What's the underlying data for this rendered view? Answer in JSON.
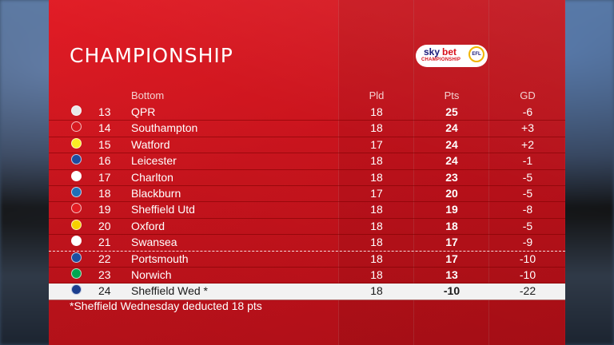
{
  "title": "CHAMPIONSHIP",
  "sponsor": {
    "sky": "sky",
    "bet": "bet",
    "sub": "CHAMPIONSHIP",
    "league": "EFL"
  },
  "headers": {
    "section": "Bottom",
    "pld": "Pld",
    "pts": "Pts",
    "gd": "GD"
  },
  "rows": [
    {
      "pos": "13",
      "team": "QPR",
      "pld": "18",
      "pts": "25",
      "gd": "-6",
      "badge_color": "#e8e8e8"
    },
    {
      "pos": "14",
      "team": "Southampton",
      "pld": "18",
      "pts": "24",
      "gd": "+3",
      "badge_color": "#d71920"
    },
    {
      "pos": "15",
      "team": "Watford",
      "pld": "17",
      "pts": "24",
      "gd": "+2",
      "badge_color": "#fbee23"
    },
    {
      "pos": "16",
      "team": "Leicester",
      "pld": "18",
      "pts": "24",
      "gd": "-1",
      "badge_color": "#1d4ba0"
    },
    {
      "pos": "17",
      "team": "Charlton",
      "pld": "18",
      "pts": "23",
      "gd": "-5",
      "badge_color": "#ffffff"
    },
    {
      "pos": "18",
      "team": "Blackburn",
      "pld": "17",
      "pts": "20",
      "gd": "-5",
      "badge_color": "#1e6fb8"
    },
    {
      "pos": "19",
      "team": "Sheffield Utd",
      "pld": "18",
      "pts": "19",
      "gd": "-8",
      "badge_color": "#e21b22"
    },
    {
      "pos": "20",
      "team": "Oxford",
      "pld": "18",
      "pts": "18",
      "gd": "-5",
      "badge_color": "#f6d000"
    },
    {
      "pos": "21",
      "team": "Swansea",
      "pld": "18",
      "pts": "17",
      "gd": "-9",
      "badge_color": "#ffffff"
    },
    {
      "pos": "22",
      "team": "Portsmouth",
      "pld": "18",
      "pts": "17",
      "gd": "-10",
      "badge_color": "#1a4ea0"
    },
    {
      "pos": "23",
      "team": "Norwich",
      "pld": "18",
      "pts": "13",
      "gd": "-10",
      "badge_color": "#00a650"
    },
    {
      "pos": "24",
      "team": "Sheffield Wed *",
      "pld": "18",
      "pts": "-10",
      "gd": "-22",
      "badge_color": "#1b3e8e"
    }
  ],
  "footnote": "*Sheffield Wednesday deducted 18 pts"
}
